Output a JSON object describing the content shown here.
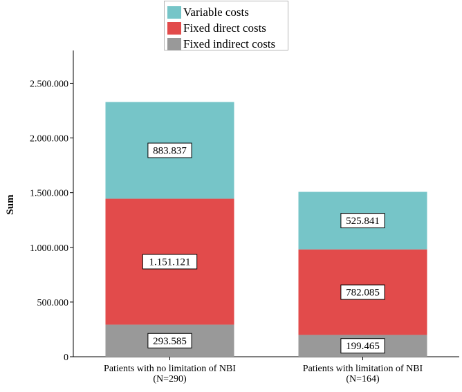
{
  "chart_data": {
    "type": "bar",
    "stacked": true,
    "categories": [
      [
        "Patients with no limitation of NBI",
        "(N=290)"
      ],
      [
        "Patients with limitation of NBI",
        "(N=164)"
      ]
    ],
    "series": [
      {
        "name": "Fixed indirect costs",
        "color": "#999999",
        "values": [
          293585,
          199465
        ],
        "labels": [
          "293.585",
          "199.465"
        ]
      },
      {
        "name": "Fixed direct costs",
        "color": "#e24b4b",
        "values": [
          1151121,
          782085
        ],
        "labels": [
          "1.151.121",
          "782.085"
        ]
      },
      {
        "name": "Variable costs",
        "color": "#76c5c8",
        "values": [
          883837,
          525841
        ],
        "labels": [
          "883.837",
          "525.841"
        ]
      }
    ],
    "ylabel": "Sum",
    "xlabel": "",
    "ylim": [
      0,
      2800000
    ],
    "yticks": [
      0,
      500000,
      1000000,
      1500000,
      2000000,
      2500000
    ],
    "ytick_labels": [
      "0",
      "500.000",
      "1.000.000",
      "1.500.000",
      "2.000.000",
      "2.500.000"
    ],
    "grid": false,
    "legend_position": "top-center"
  },
  "legend": {
    "items": [
      {
        "label": "Variable costs",
        "color": "#76c5c8"
      },
      {
        "label": "Fixed direct costs",
        "color": "#e24b4b"
      },
      {
        "label": "Fixed indirect costs",
        "color": "#999999"
      }
    ]
  }
}
